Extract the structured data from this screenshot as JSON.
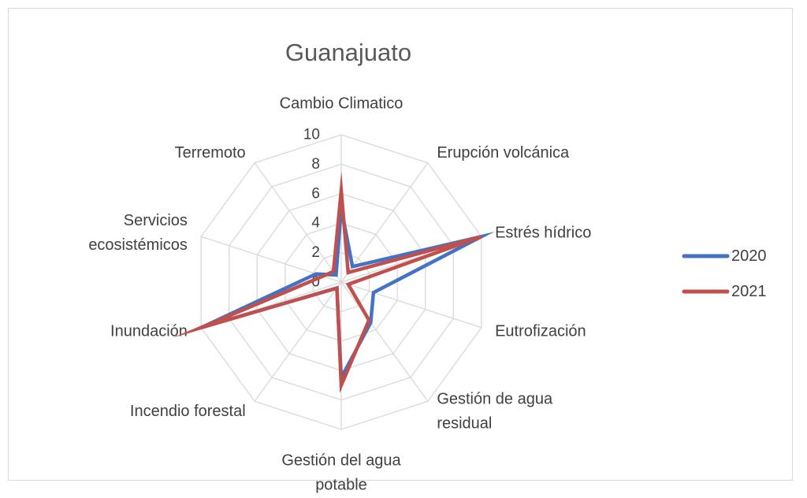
{
  "chart_data": {
    "type": "radar",
    "title": "Guanajuato",
    "categories": [
      "Cambio Climatico",
      "Erupción volcánica",
      "Estrés hídrico",
      "Eutrofización",
      "Gestión de agua residual",
      "Gestión del agua potable",
      "Incendio forestal",
      "Inundación",
      "Servicios ecosistémicos",
      "Terremoto"
    ],
    "category_lines": [
      [
        "Cambio Climatico"
      ],
      [
        "Erupción volcánica"
      ],
      [
        "Estrés hídrico"
      ],
      [
        "Eutrofización"
      ],
      [
        "Gestión de agua",
        "residual"
      ],
      [
        "Gestión del agua",
        "potable"
      ],
      [
        "Incendio forestal"
      ],
      [
        "Inundación"
      ],
      [
        "Servicios",
        "ecosistémicos"
      ],
      [
        "Terremoto"
      ]
    ],
    "ticks": [
      "0",
      "2",
      "4",
      "6",
      "8",
      "10"
    ],
    "rlim": [
      0,
      10
    ],
    "grid": true,
    "legend_position": "right",
    "series": [
      {
        "name": "2020",
        "color": "#4472C4",
        "values": [
          5,
          1.3,
          10,
          2.3,
          3.4,
          6.5,
          0.5,
          10,
          1.8,
          0.6
        ]
      },
      {
        "name": "2021",
        "color": "#C0504D",
        "values": [
          6.2,
          0.8,
          10,
          0.5,
          3.2,
          7.0,
          0.5,
          10,
          1.3,
          0.9
        ]
      }
    ]
  }
}
